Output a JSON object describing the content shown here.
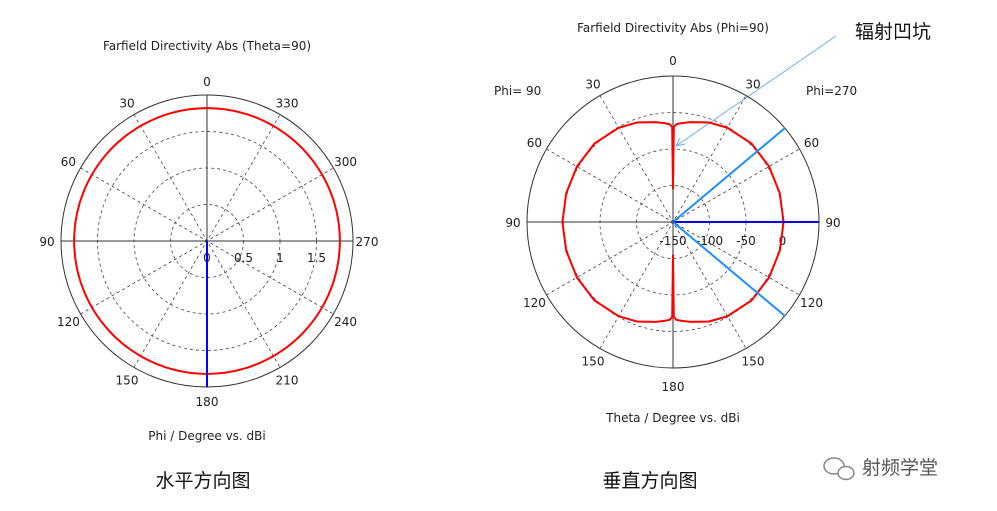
{
  "chart_data": [
    {
      "type": "polar-line",
      "title": "Farfield Directivity Abs (Theta=90)",
      "xlabel": "Phi / Degree vs. dBi",
      "caption": "水平方向图",
      "angle_ticks": [
        "0",
        "30",
        "60",
        "90",
        "120",
        "150",
        "180",
        "210",
        "240",
        "270",
        "300",
        "330"
      ],
      "radial_ticks": [
        "0",
        "0.5",
        "1",
        "1.5"
      ],
      "rlim": [
        0,
        2
      ],
      "grid": true,
      "series": [
        {
          "color": "#ff0000",
          "points": [
            [
              0,
              1.82
            ],
            [
              90,
              1.82
            ],
            [
              180,
              1.82
            ],
            [
              270,
              1.82
            ],
            [
              360,
              1.82
            ]
          ]
        }
      ],
      "markers": [
        {
          "angle": 180,
          "color": "#0000ff"
        }
      ]
    },
    {
      "type": "polar-line",
      "title": "Farfield Directivity Abs (Phi=90)",
      "xlabel": "Theta / Degree vs. dBi",
      "caption": "垂直方向图",
      "left_label": "Phi= 90",
      "right_label": "Phi=270",
      "angle_ticks_left": [
        "30",
        "60",
        "90",
        "120",
        "150"
      ],
      "angle_ticks_right": [
        "30",
        "60",
        "90",
        "120",
        "150"
      ],
      "angle_top": "0",
      "angle_bottom": "180",
      "radial_ticks": [
        "-150",
        "-100",
        "-50",
        "0"
      ],
      "rlim": [
        -150,
        50
      ],
      "grid": true,
      "series": [
        {
          "color": "#ff0000",
          "points": [
            [
              0,
              -105
            ],
            [
              0.5,
              -20
            ],
            [
              2,
              -16
            ],
            [
              5,
              -14
            ],
            [
              10,
              -11
            ],
            [
              20,
              -5
            ],
            [
              30,
              -1
            ],
            [
              45,
              2
            ],
            [
              60,
              2
            ],
            [
              75,
              1.5
            ],
            [
              90,
              1.5
            ],
            [
              105,
              1.5
            ],
            [
              120,
              2
            ],
            [
              135,
              2
            ],
            [
              150,
              -1
            ],
            [
              160,
              -5
            ],
            [
              170,
              -11
            ],
            [
              175,
              -14
            ],
            [
              178,
              -16
            ],
            [
              179.5,
              -20
            ],
            [
              180,
              -105
            ]
          ]
        }
      ],
      "markers": [
        {
          "angle": 50,
          "color": "#1e8fff"
        },
        {
          "angle": 90,
          "color": "#0000ff"
        },
        {
          "angle": 130,
          "color": "#1e8fff"
        }
      ],
      "annotation": "辐射凹坑"
    }
  ],
  "watermark": "射频学堂"
}
